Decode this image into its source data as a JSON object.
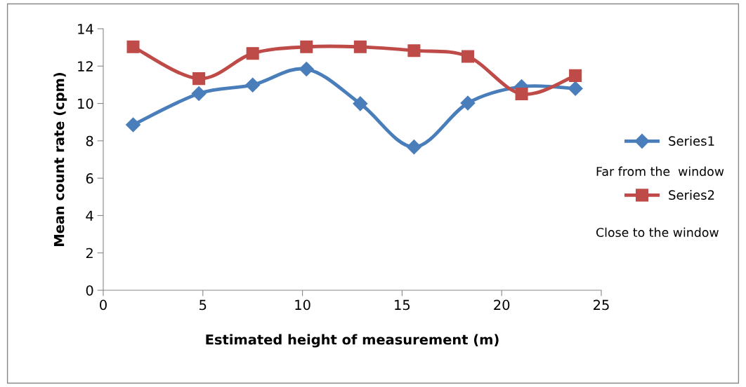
{
  "chart_data": {
    "type": "line",
    "xlabel": "Estimated height of measurement (m)",
    "ylabel": "Mean count rate (cpm)",
    "x": [
      1.5,
      4.8,
      7.5,
      10.2,
      12.9,
      15.6,
      18.3,
      21.0,
      23.7
    ],
    "series": [
      {
        "name": "Series1",
        "color": "#4a7ebb",
        "marker": "diamond",
        "values": [
          8.86,
          10.53,
          10.99,
          11.84,
          9.99,
          7.67,
          10.02,
          10.9,
          10.8
        ]
      },
      {
        "name": "Series2",
        "color": "#be4b48",
        "marker": "square",
        "values": [
          13.03,
          11.33,
          12.68,
          13.03,
          13.03,
          12.83,
          12.52,
          10.51,
          11.49
        ]
      }
    ],
    "annotations": [
      "Far from the  window",
      "Close to the window"
    ],
    "xlim": [
      0,
      25
    ],
    "xticks": [
      0,
      5,
      10,
      15,
      20,
      25
    ],
    "ylim": [
      0,
      14
    ],
    "yticks": [
      0,
      2,
      4,
      6,
      8,
      10,
      12,
      14
    ],
    "grid": false,
    "legend": "right",
    "line_style": "solid"
  }
}
